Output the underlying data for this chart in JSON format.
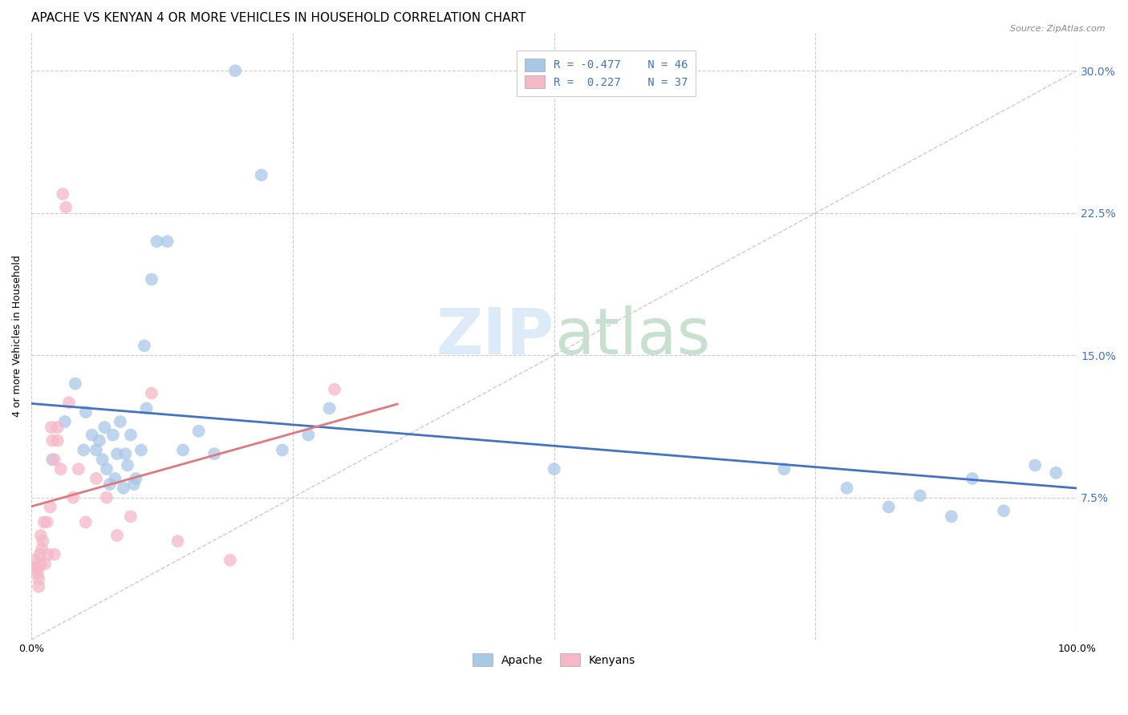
{
  "title": "APACHE VS KENYAN 4 OR MORE VEHICLES IN HOUSEHOLD CORRELATION CHART",
  "source": "Source: ZipAtlas.com",
  "ylabel": "4 or more Vehicles in Household",
  "xlim": [
    0.0,
    1.0
  ],
  "ylim": [
    0.0,
    0.32
  ],
  "xticks": [
    0.0,
    0.25,
    0.5,
    0.75,
    1.0
  ],
  "xticklabels": [
    "0.0%",
    "",
    "",
    "",
    "100.0%"
  ],
  "yticks": [
    0.0,
    0.075,
    0.15,
    0.225,
    0.3
  ],
  "yticklabels": [
    "",
    "7.5%",
    "15.0%",
    "22.5%",
    "30.0%"
  ],
  "apache_R": -0.477,
  "apache_N": 46,
  "kenyan_R": 0.227,
  "kenyan_N": 37,
  "apache_color": "#a8c8e8",
  "kenyan_color": "#f4b8c8",
  "apache_line_color": "#4472c4",
  "kenyan_line_color": "#e07880",
  "diagonal_color": "#cccccc",
  "apache_x": [
    0.02,
    0.032,
    0.042,
    0.05,
    0.052,
    0.058,
    0.062,
    0.065,
    0.068,
    0.07,
    0.072,
    0.075,
    0.078,
    0.08,
    0.082,
    0.085,
    0.088,
    0.09,
    0.092,
    0.095,
    0.098,
    0.1,
    0.105,
    0.108,
    0.11,
    0.115,
    0.12,
    0.13,
    0.145,
    0.16,
    0.175,
    0.195,
    0.22,
    0.24,
    0.265,
    0.285,
    0.5,
    0.72,
    0.78,
    0.82,
    0.85,
    0.88,
    0.9,
    0.93,
    0.96,
    0.98
  ],
  "apache_y": [
    0.095,
    0.115,
    0.135,
    0.1,
    0.12,
    0.108,
    0.1,
    0.105,
    0.095,
    0.112,
    0.09,
    0.082,
    0.108,
    0.085,
    0.098,
    0.115,
    0.08,
    0.098,
    0.092,
    0.108,
    0.082,
    0.085,
    0.1,
    0.155,
    0.122,
    0.19,
    0.21,
    0.21,
    0.1,
    0.11,
    0.098,
    0.3,
    0.245,
    0.1,
    0.108,
    0.122,
    0.09,
    0.09,
    0.08,
    0.07,
    0.076,
    0.065,
    0.085,
    0.068,
    0.092,
    0.088
  ],
  "kenyan_x": [
    0.004,
    0.004,
    0.006,
    0.006,
    0.007,
    0.007,
    0.008,
    0.009,
    0.009,
    0.01,
    0.011,
    0.012,
    0.013,
    0.015,
    0.016,
    0.018,
    0.019,
    0.02,
    0.022,
    0.022,
    0.025,
    0.025,
    0.028,
    0.03,
    0.033,
    0.036,
    0.04,
    0.045,
    0.052,
    0.062,
    0.072,
    0.082,
    0.095,
    0.115,
    0.14,
    0.19,
    0.29
  ],
  "kenyan_y": [
    0.042,
    0.038,
    0.038,
    0.035,
    0.032,
    0.028,
    0.045,
    0.04,
    0.055,
    0.048,
    0.052,
    0.062,
    0.04,
    0.062,
    0.045,
    0.07,
    0.112,
    0.105,
    0.095,
    0.045,
    0.112,
    0.105,
    0.09,
    0.235,
    0.228,
    0.125,
    0.075,
    0.09,
    0.062,
    0.085,
    0.075,
    0.055,
    0.065,
    0.13,
    0.052,
    0.042,
    0.132
  ],
  "background_color": "#ffffff",
  "title_fontsize": 11,
  "axis_fontsize": 9,
  "legend_fontsize": 10,
  "zip_color": "#ddeaf8",
  "atlas_color": "#c8e0d0"
}
